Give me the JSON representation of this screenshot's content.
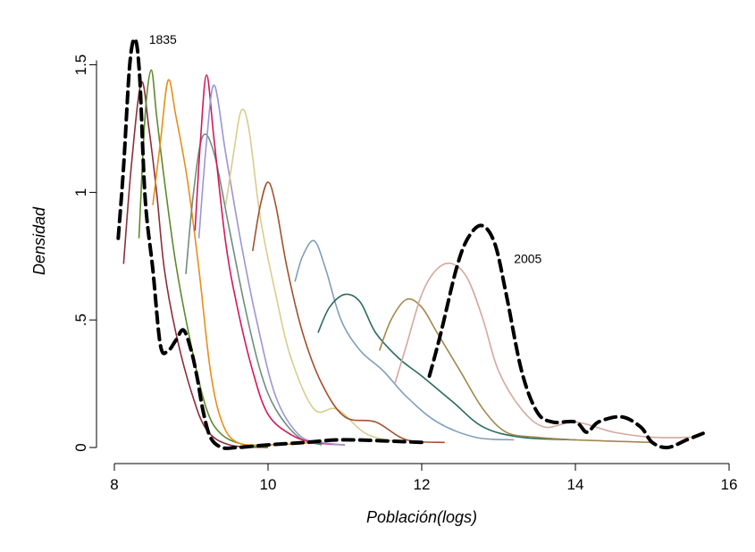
{
  "chart_data": {
    "type": "line",
    "title": "",
    "xlabel": "Población(logs)",
    "ylabel": "Densidad",
    "xlim": [
      8,
      16
    ],
    "ylim": [
      0,
      1.6
    ],
    "xticks": [
      8,
      10,
      12,
      14,
      16
    ],
    "xtick_labels": [
      "8",
      "10",
      "12",
      "14",
      "16"
    ],
    "yticks": [
      0,
      0.5,
      1,
      1.5
    ],
    "ytick_labels": [
      "0",
      ".5",
      "1",
      "1.5"
    ],
    "grid": false,
    "legend": "none",
    "annotations": [
      {
        "text": "1835",
        "x": 8.45,
        "y": 1.6
      },
      {
        "text": "2005",
        "x": 13.2,
        "y": 0.74
      }
    ],
    "series": [
      {
        "color": "#000000",
        "style": "dashed-thick",
        "x": [
          8.05,
          8.12,
          8.2,
          8.27,
          8.33,
          8.4,
          8.5,
          8.6,
          8.7,
          8.8,
          8.9,
          9.0,
          9.08,
          9.15,
          9.25,
          9.4,
          9.6,
          10.0,
          10.5,
          11.0,
          12.0
        ],
        "y": [
          0.82,
          1.1,
          1.5,
          1.6,
          1.45,
          0.98,
          0.7,
          0.4,
          0.38,
          0.42,
          0.46,
          0.38,
          0.27,
          0.15,
          0.04,
          0.0,
          0.0,
          0.01,
          0.02,
          0.03,
          0.02
        ]
      },
      {
        "color": "#8b2f3c",
        "style": "solid",
        "x": [
          8.12,
          8.22,
          8.35,
          8.45,
          8.55,
          8.65,
          8.8,
          9.0,
          9.2,
          9.5,
          10.0
        ],
        "y": [
          0.72,
          1.1,
          1.43,
          1.25,
          1.0,
          0.7,
          0.45,
          0.22,
          0.07,
          0.01,
          0.0
        ]
      },
      {
        "color": "#5e8a2e",
        "style": "solid",
        "x": [
          8.32,
          8.4,
          8.48,
          8.55,
          8.65,
          8.8,
          9.0,
          9.2,
          9.4,
          9.7,
          10.0
        ],
        "y": [
          0.82,
          1.3,
          1.48,
          1.3,
          1.05,
          0.72,
          0.4,
          0.15,
          0.05,
          0.01,
          0.0
        ]
      },
      {
        "color": "#e88e1b",
        "style": "solid",
        "x": [
          8.5,
          8.6,
          8.7,
          8.8,
          8.95,
          9.1,
          9.25,
          9.4,
          9.6,
          10.0,
          10.6
        ],
        "y": [
          0.95,
          1.2,
          1.44,
          1.3,
          1.05,
          0.7,
          0.3,
          0.1,
          0.02,
          0.01,
          0.02
        ]
      },
      {
        "color": "#6f8f7c",
        "style": "solid",
        "x": [
          8.93,
          9.03,
          9.15,
          9.3,
          9.5,
          9.7,
          9.9,
          10.1,
          10.4,
          10.7
        ],
        "y": [
          0.68,
          1.0,
          1.22,
          1.15,
          0.85,
          0.55,
          0.3,
          0.15,
          0.04,
          0.01
        ]
      },
      {
        "color": "#d4195a",
        "style": "solid",
        "x": [
          9.05,
          9.12,
          9.2,
          9.3,
          9.45,
          9.6,
          9.8,
          10.0,
          10.3,
          10.6,
          11.0
        ],
        "y": [
          0.85,
          1.2,
          1.46,
          1.2,
          0.8,
          0.55,
          0.3,
          0.13,
          0.05,
          0.02,
          0.01
        ]
      },
      {
        "color": "#9a96d4",
        "style": "solid",
        "x": [
          9.1,
          9.2,
          9.3,
          9.45,
          9.65,
          9.85,
          10.1,
          10.4,
          10.7,
          11.0
        ],
        "y": [
          0.82,
          1.2,
          1.42,
          1.15,
          0.8,
          0.5,
          0.2,
          0.05,
          0.02,
          0.01
        ]
      },
      {
        "color": "#d9cc8e",
        "style": "solid",
        "x": [
          9.45,
          9.55,
          9.65,
          9.75,
          9.9,
          10.1,
          10.3,
          10.6,
          10.9,
          11.3,
          11.8
        ],
        "y": [
          0.95,
          1.15,
          1.32,
          1.25,
          0.9,
          0.6,
          0.35,
          0.15,
          0.15,
          0.05,
          0.02
        ]
      },
      {
        "color": "#a0522d",
        "style": "solid",
        "x": [
          9.8,
          9.9,
          10.0,
          10.1,
          10.25,
          10.45,
          10.7,
          11.0,
          11.4,
          11.8,
          12.3
        ],
        "y": [
          0.77,
          0.95,
          1.04,
          0.95,
          0.7,
          0.45,
          0.25,
          0.12,
          0.1,
          0.03,
          0.02
        ]
      },
      {
        "color": "#7ea0b8",
        "style": "solid",
        "x": [
          10.35,
          10.45,
          10.6,
          10.75,
          10.95,
          11.2,
          11.5,
          11.8,
          12.2,
          12.7,
          13.2
        ],
        "y": [
          0.65,
          0.75,
          0.81,
          0.7,
          0.5,
          0.38,
          0.3,
          0.2,
          0.1,
          0.04,
          0.03
        ]
      },
      {
        "color": "#2d6b5e",
        "style": "solid",
        "x": [
          10.65,
          10.8,
          11.0,
          11.2,
          11.4,
          11.7,
          12.0,
          12.4,
          12.8,
          13.3,
          14.0
        ],
        "y": [
          0.45,
          0.55,
          0.6,
          0.57,
          0.45,
          0.35,
          0.28,
          0.18,
          0.08,
          0.04,
          0.03
        ]
      },
      {
        "color": "#a08850",
        "style": "solid",
        "x": [
          11.45,
          11.6,
          11.8,
          12.0,
          12.2,
          12.5,
          12.8,
          13.1,
          13.5,
          14.0,
          15.0
        ],
        "y": [
          0.38,
          0.5,
          0.58,
          0.55,
          0.45,
          0.3,
          0.15,
          0.06,
          0.04,
          0.03,
          0.02
        ]
      },
      {
        "color": "#d4a8a0",
        "style": "solid",
        "x": [
          11.65,
          11.8,
          12.0,
          12.2,
          12.4,
          12.6,
          12.8,
          13.0,
          13.3,
          13.6,
          14.0,
          14.5,
          15.0,
          15.5
        ],
        "y": [
          0.25,
          0.4,
          0.6,
          0.7,
          0.72,
          0.66,
          0.5,
          0.3,
          0.15,
          0.08,
          0.1,
          0.06,
          0.04,
          0.04
        ]
      },
      {
        "color": "#000000",
        "style": "dashed-thick",
        "x": [
          12.1,
          12.25,
          12.45,
          12.6,
          12.78,
          12.95,
          13.1,
          13.3,
          13.5,
          13.7,
          14.0,
          14.15,
          14.3,
          14.6,
          14.85,
          15.0,
          15.2,
          15.45,
          15.7
        ],
        "y": [
          0.28,
          0.45,
          0.7,
          0.82,
          0.87,
          0.8,
          0.6,
          0.3,
          0.14,
          0.1,
          0.1,
          0.06,
          0.1,
          0.12,
          0.08,
          0.02,
          0.0,
          0.03,
          0.06
        ]
      }
    ]
  }
}
